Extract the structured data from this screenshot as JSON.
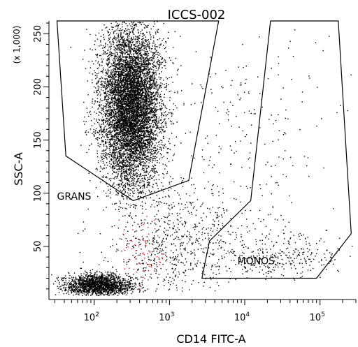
{
  "chart_data": {
    "type": "scatter",
    "title": "ICCS-002",
    "xlabel": "CD14 FITC-A",
    "ylabel": "SSC-A",
    "y_multiplier_label": "(x 1,000)",
    "x_scale": "log",
    "xlim": [
      25,
      300000
    ],
    "ylim": [
      0,
      262
    ],
    "x_ticks": [
      {
        "value": 100,
        "base": "10",
        "exp": "2"
      },
      {
        "value": 1000,
        "base": "10",
        "exp": "3"
      },
      {
        "value": 10000,
        "base": "10",
        "exp": "4"
      },
      {
        "value": 100000,
        "base": "10",
        "exp": "5"
      }
    ],
    "y_ticks": [
      {
        "value": 50,
        "label": "50"
      },
      {
        "value": 100,
        "label": "100"
      },
      {
        "value": 150,
        "label": "150"
      },
      {
        "value": 200,
        "label": "200"
      },
      {
        "value": 250,
        "label": "250"
      }
    ],
    "grid": false,
    "point_colors": {
      "main": "#000000",
      "highlight": "#e0191a"
    },
    "populations": [
      {
        "id": "grans-cluster",
        "color": "#000000",
        "count": 7500,
        "x_log_center": 2.48,
        "x_log_sd": 0.2,
        "y_center": 182,
        "y_sd": 38,
        "y_min": 85,
        "y_max": 262
      },
      {
        "id": "debris-cluster",
        "color": "#000000",
        "count": 1800,
        "x_log_center": 2.05,
        "x_log_sd": 0.22,
        "y_center": 14,
        "y_sd": 5,
        "y_min": 4,
        "y_max": 34
      },
      {
        "id": "lymph-scatter",
        "color": "#000000",
        "count": 700,
        "x_log_center": 3.05,
        "x_log_sd": 0.45,
        "y_center": 55,
        "y_sd": 28,
        "y_min": 8,
        "y_max": 120
      },
      {
        "id": "monos-scatter",
        "color": "#000000",
        "count": 320,
        "x_log_center": 4.45,
        "x_log_sd": 0.4,
        "y_center": 42,
        "y_sd": 12,
        "y_min": 18,
        "y_max": 90
      },
      {
        "id": "sparse-scatter",
        "color": "#000000",
        "count": 220,
        "x_log_center": 4.0,
        "x_log_sd": 0.6,
        "y_center": 160,
        "y_sd": 60,
        "y_min": 50,
        "y_max": 262
      },
      {
        "id": "red-events",
        "color": "#e0191a",
        "count": 70,
        "x_log_center": 2.62,
        "x_log_sd": 0.2,
        "y_center": 48,
        "y_sd": 25,
        "y_min": 10,
        "y_max": 110
      }
    ],
    "gates": [
      {
        "name": "GRANS",
        "label_at": [
          32,
          94
        ],
        "label_anchor": "start",
        "polygon": [
          [
            32,
            262
          ],
          [
            42,
            135
          ],
          [
            330,
            93
          ],
          [
            1800,
            112
          ],
          [
            4500,
            262
          ]
        ]
      },
      {
        "name": "MONOS",
        "label_at": [
          8000,
          33
        ],
        "label_anchor": "start",
        "polygon": [
          [
            2700,
            20
          ],
          [
            3400,
            55
          ],
          [
            12000,
            93
          ],
          [
            22000,
            262
          ],
          [
            175000,
            262
          ],
          [
            260000,
            62
          ],
          [
            90000,
            20
          ]
        ]
      }
    ]
  }
}
